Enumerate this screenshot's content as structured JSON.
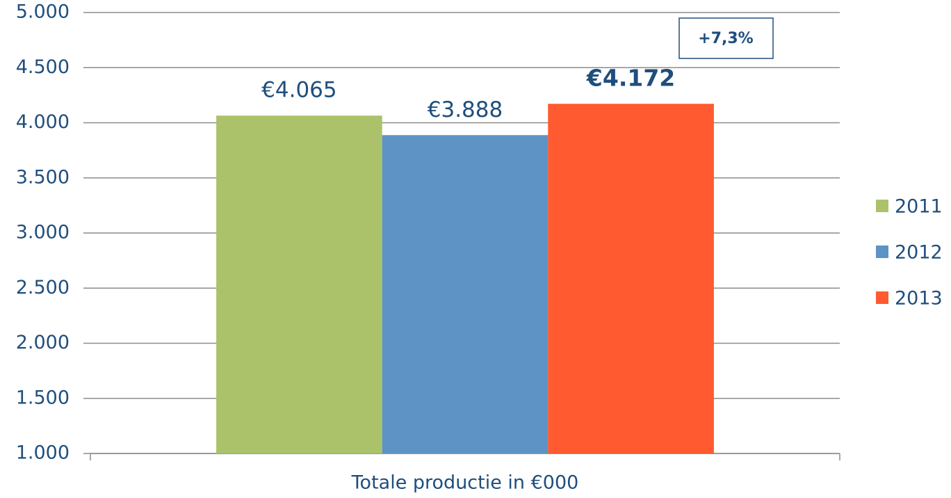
{
  "chart_data": {
    "type": "bar",
    "categories": [
      "Totale productie in €000"
    ],
    "series": [
      {
        "name": "2011",
        "color": "#abc26b",
        "values": [
          4065
        ],
        "value_labels": [
          "€4.065"
        ]
      },
      {
        "name": "2012",
        "color": "#5d93c5",
        "values": [
          3888
        ],
        "value_labels": [
          "€3.888"
        ]
      },
      {
        "name": "2013",
        "color": "#ff5a30",
        "values": [
          4172
        ],
        "value_labels": [
          "€4.172"
        ]
      }
    ],
    "annotations": [
      "+7,3%"
    ],
    "ylim": [
      1000,
      5000
    ],
    "yticks": [
      {
        "value": 1000,
        "label": "1.000"
      },
      {
        "value": 1500,
        "label": "1.500"
      },
      {
        "value": 2000,
        "label": "2.000"
      },
      {
        "value": 2500,
        "label": "2.500"
      },
      {
        "value": 3000,
        "label": "3.000"
      },
      {
        "value": 3500,
        "label": "3.500"
      },
      {
        "value": 4000,
        "label": "4.000"
      },
      {
        "value": 4500,
        "label": "4.500"
      },
      {
        "value": 5000,
        "label": "5.000"
      }
    ],
    "grid": true,
    "legend": "right"
  }
}
